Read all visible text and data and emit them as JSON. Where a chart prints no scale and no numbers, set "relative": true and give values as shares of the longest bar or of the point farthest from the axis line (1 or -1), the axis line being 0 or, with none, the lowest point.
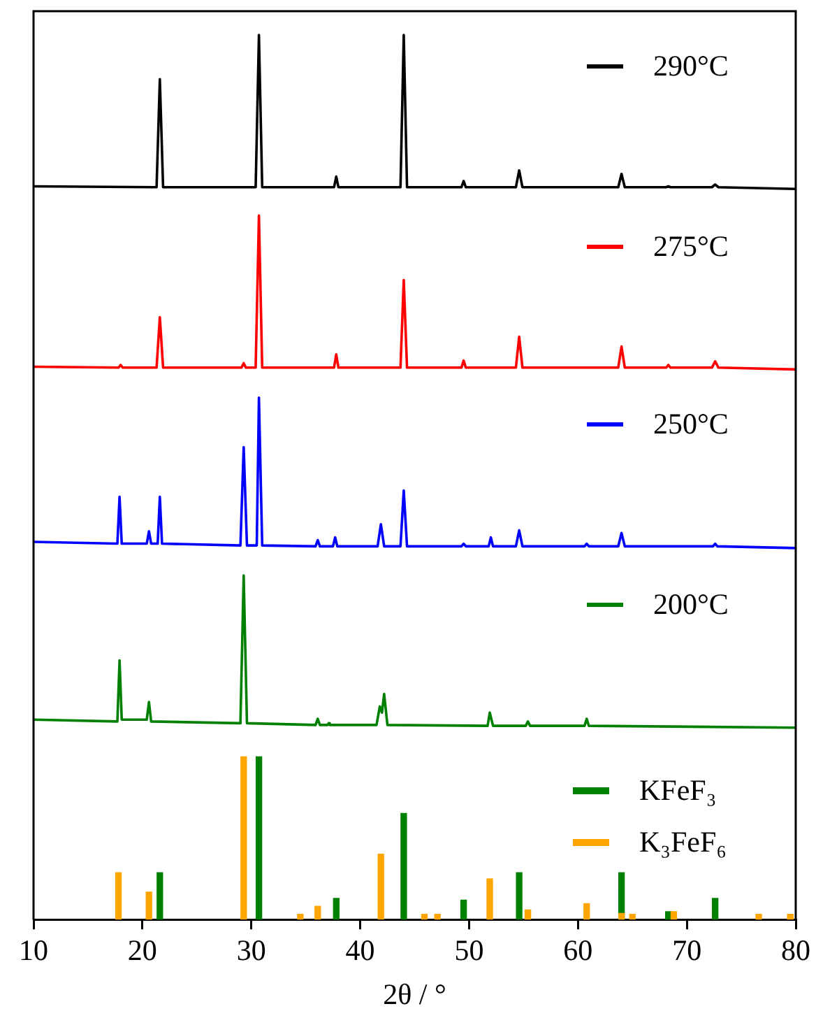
{
  "chart_data": {
    "type": "line",
    "relative": true,
    "xlim": [
      10,
      80
    ],
    "xticks": [
      10,
      20,
      30,
      40,
      50,
      60,
      70,
      80
    ],
    "xlabel": "2θ / °",
    "legend": "right",
    "series": [
      {
        "name": "290°C",
        "color": "#000000",
        "x": [
          10,
          21.3,
          21.6,
          21.9,
          30.4,
          30.7,
          31.0,
          37.6,
          37.8,
          38.0,
          43.7,
          44.0,
          44.3,
          49.3,
          49.5,
          49.7,
          54.3,
          54.6,
          54.9,
          63.7,
          64.0,
          64.3,
          68.1,
          68.3,
          68.5,
          72.3,
          72.6,
          72.9,
          80
        ],
        "values": [
          0.829,
          0.828,
          0.95,
          0.828,
          0.828,
          1,
          0.828,
          0.828,
          0.84,
          0.828,
          0.828,
          1,
          0.828,
          0.828,
          0.835,
          0.828,
          0.828,
          0.847,
          0.828,
          0.828,
          0.843,
          0.828,
          0.828,
          0.829,
          0.828,
          0.828,
          0.831,
          0.828,
          0.826
        ]
      },
      {
        "name": "275°C",
        "color": "#ff0000",
        "x": [
          10,
          17.8,
          18.0,
          18.2,
          21.3,
          21.6,
          21.9,
          29.1,
          29.3,
          29.5,
          30.4,
          30.7,
          31.0,
          37.6,
          37.8,
          38.0,
          43.7,
          44.0,
          44.3,
          49.3,
          49.5,
          49.7,
          54.3,
          54.6,
          54.9,
          63.7,
          64.0,
          64.3,
          68.1,
          68.3,
          68.5,
          72.3,
          72.6,
          72.9,
          80
        ],
        "values": [
          0.625,
          0.624,
          0.627,
          0.624,
          0.624,
          0.681,
          0.624,
          0.624,
          0.629,
          0.624,
          0.624,
          0.796,
          0.624,
          0.624,
          0.639,
          0.624,
          0.624,
          0.723,
          0.624,
          0.624,
          0.632,
          0.624,
          0.624,
          0.659,
          0.624,
          0.624,
          0.648,
          0.624,
          0.624,
          0.627,
          0.624,
          0.624,
          0.631,
          0.624,
          0.622
        ]
      },
      {
        "name": "250°C",
        "color": "#0000ff",
        "x": [
          10,
          17.7,
          17.9,
          18.1,
          20.4,
          20.6,
          20.8,
          21.4,
          21.6,
          21.8,
          29.0,
          29.3,
          29.6,
          30.5,
          30.7,
          31.0,
          35.9,
          36.1,
          36.3,
          37.5,
          37.7,
          37.9,
          41.6,
          41.9,
          42.2,
          43.7,
          44.0,
          44.3,
          49.3,
          49.5,
          49.7,
          51.8,
          52.0,
          52.2,
          54.3,
          54.6,
          54.9,
          60.6,
          60.8,
          61.0,
          63.7,
          64.0,
          64.3,
          72.4,
          72.6,
          72.8,
          80
        ],
        "values": [
          0.427,
          0.425,
          0.478,
          0.425,
          0.425,
          0.439,
          0.425,
          0.425,
          0.478,
          0.425,
          0.423,
          0.534,
          0.423,
          0.423,
          0.59,
          0.423,
          0.422,
          0.429,
          0.422,
          0.422,
          0.432,
          0.422,
          0.422,
          0.447,
          0.422,
          0.422,
          0.485,
          0.422,
          0.422,
          0.425,
          0.422,
          0.422,
          0.432,
          0.422,
          0.422,
          0.44,
          0.422,
          0.422,
          0.425,
          0.422,
          0.422,
          0.437,
          0.422,
          0.422,
          0.425,
          0.422,
          0.42
        ]
      },
      {
        "name": "200°C",
        "color": "#008000",
        "x": [
          10,
          17.7,
          17.9,
          18.1,
          20.4,
          20.6,
          20.8,
          29.0,
          29.3,
          29.6,
          35.9,
          36.1,
          36.3,
          37.0,
          37.1,
          37.2,
          41.5,
          41.8,
          42.0,
          42.2,
          42.5,
          51.7,
          51.9,
          52.2,
          55.2,
          55.4,
          55.6,
          60.6,
          60.8,
          61.0,
          80
        ],
        "values": [
          0.226,
          0.224,
          0.293,
          0.226,
          0.226,
          0.246,
          0.224,
          0.222,
          0.389,
          0.222,
          0.22,
          0.227,
          0.22,
          0.22,
          0.222,
          0.22,
          0.22,
          0.241,
          0.234,
          0.255,
          0.22,
          0.219,
          0.234,
          0.219,
          0.219,
          0.224,
          0.219,
          0.219,
          0.227,
          0.219,
          0.217
        ]
      },
      {
        "name": "KFeF₃",
        "type": "bar",
        "color": "#008000",
        "x": [
          21.6,
          30.7,
          37.8,
          44.0,
          49.5,
          54.6,
          64.0,
          68.3,
          72.6
        ],
        "values": [
          0.053,
          0.184,
          0.024,
          0.12,
          0.022,
          0.053,
          0.053,
          0.009,
          0.024
        ]
      },
      {
        "name": "K₃FeF₆",
        "type": "bar",
        "color": "#ffa500",
        "x": [
          17.8,
          20.6,
          29.3,
          34.5,
          36.1,
          41.9,
          45.9,
          47.1,
          51.9,
          55.4,
          60.8,
          64.0,
          65.0,
          68.8,
          76.6,
          79.5
        ],
        "values": [
          0.053,
          0.031,
          0.184,
          0.006,
          0.015,
          0.074,
          0.006,
          0.006,
          0.046,
          0.011,
          0.018,
          0.007,
          0.006,
          0.009,
          0.006,
          0.006
        ]
      }
    ]
  }
}
